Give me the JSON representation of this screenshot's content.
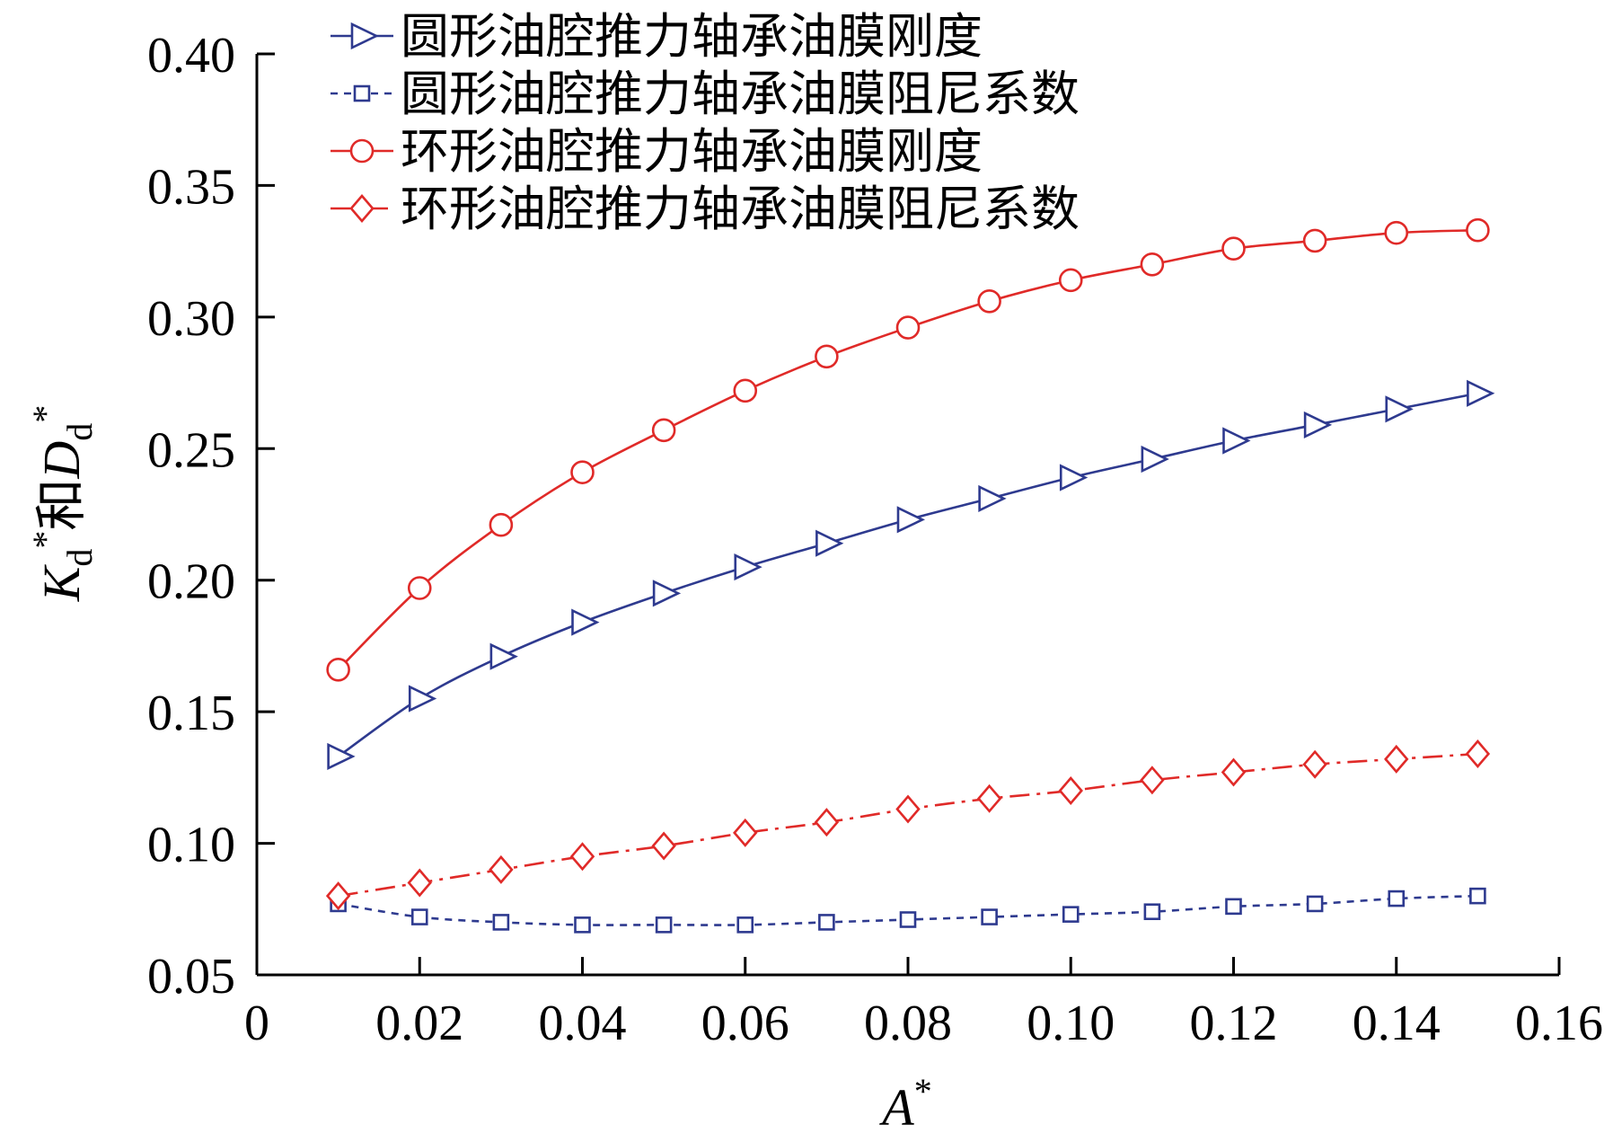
{
  "chart_data": {
    "type": "line",
    "title": "",
    "xlabel": {
      "base": "A",
      "sup": "*"
    },
    "ylabel": {
      "k": "K",
      "k_sub": "d",
      "k_sup": "*",
      "mid": "和",
      "d": "D",
      "d_sub": "d",
      "d_sup": "*"
    },
    "xlim": [
      0,
      0.16
    ],
    "ylim": [
      0.05,
      0.4
    ],
    "x_ticks": [
      0,
      0.02,
      0.04,
      0.06,
      0.08,
      0.1,
      0.12,
      0.14,
      0.16
    ],
    "x_tick_labels": [
      "0",
      "0.02",
      "0.04",
      "0.06",
      "0.08",
      "0.10",
      "0.12",
      "0.14",
      "0.16"
    ],
    "y_ticks": [
      0.05,
      0.1,
      0.15,
      0.2,
      0.25,
      0.3,
      0.35,
      0.4
    ],
    "y_tick_labels": [
      "0.05",
      "0.10",
      "0.15",
      "0.20",
      "0.25",
      "0.30",
      "0.35",
      "0.40"
    ],
    "grid": false,
    "legend_position": "top-left",
    "x": [
      0.01,
      0.02,
      0.03,
      0.04,
      0.05,
      0.06,
      0.07,
      0.08,
      0.09,
      0.1,
      0.11,
      0.12,
      0.13,
      0.14,
      0.15
    ],
    "series": [
      {
        "name": "圆形油腔推力轴承油膜刚度",
        "color": "#2e3a8f",
        "marker": "triangle-right",
        "line_style": "solid",
        "values": [
          0.133,
          0.155,
          0.171,
          0.184,
          0.195,
          0.205,
          0.214,
          0.223,
          0.231,
          0.239,
          0.246,
          0.253,
          0.259,
          0.265,
          0.271
        ]
      },
      {
        "name": "圆形油腔推力轴承油膜阻尼系数",
        "color": "#2e3a8f",
        "marker": "square",
        "line_style": "dashed",
        "values": [
          0.077,
          0.072,
          0.07,
          0.069,
          0.069,
          0.069,
          0.07,
          0.071,
          0.072,
          0.073,
          0.074,
          0.076,
          0.077,
          0.079,
          0.08
        ]
      },
      {
        "name": "环形油腔推力轴承油膜刚度",
        "color": "#e02a28",
        "marker": "circle",
        "line_style": "solid",
        "values": [
          0.166,
          0.197,
          0.221,
          0.241,
          0.257,
          0.272,
          0.285,
          0.296,
          0.306,
          0.314,
          0.32,
          0.326,
          0.329,
          0.332,
          0.333
        ]
      },
      {
        "name": "环形油腔推力轴承油膜阻尼系数",
        "color": "#e02a28",
        "marker": "diamond",
        "line_style": "dashdot",
        "values": [
          0.08,
          0.085,
          0.09,
          0.095,
          0.099,
          0.104,
          0.108,
          0.113,
          0.117,
          0.12,
          0.124,
          0.127,
          0.13,
          0.132,
          0.134
        ]
      }
    ]
  }
}
